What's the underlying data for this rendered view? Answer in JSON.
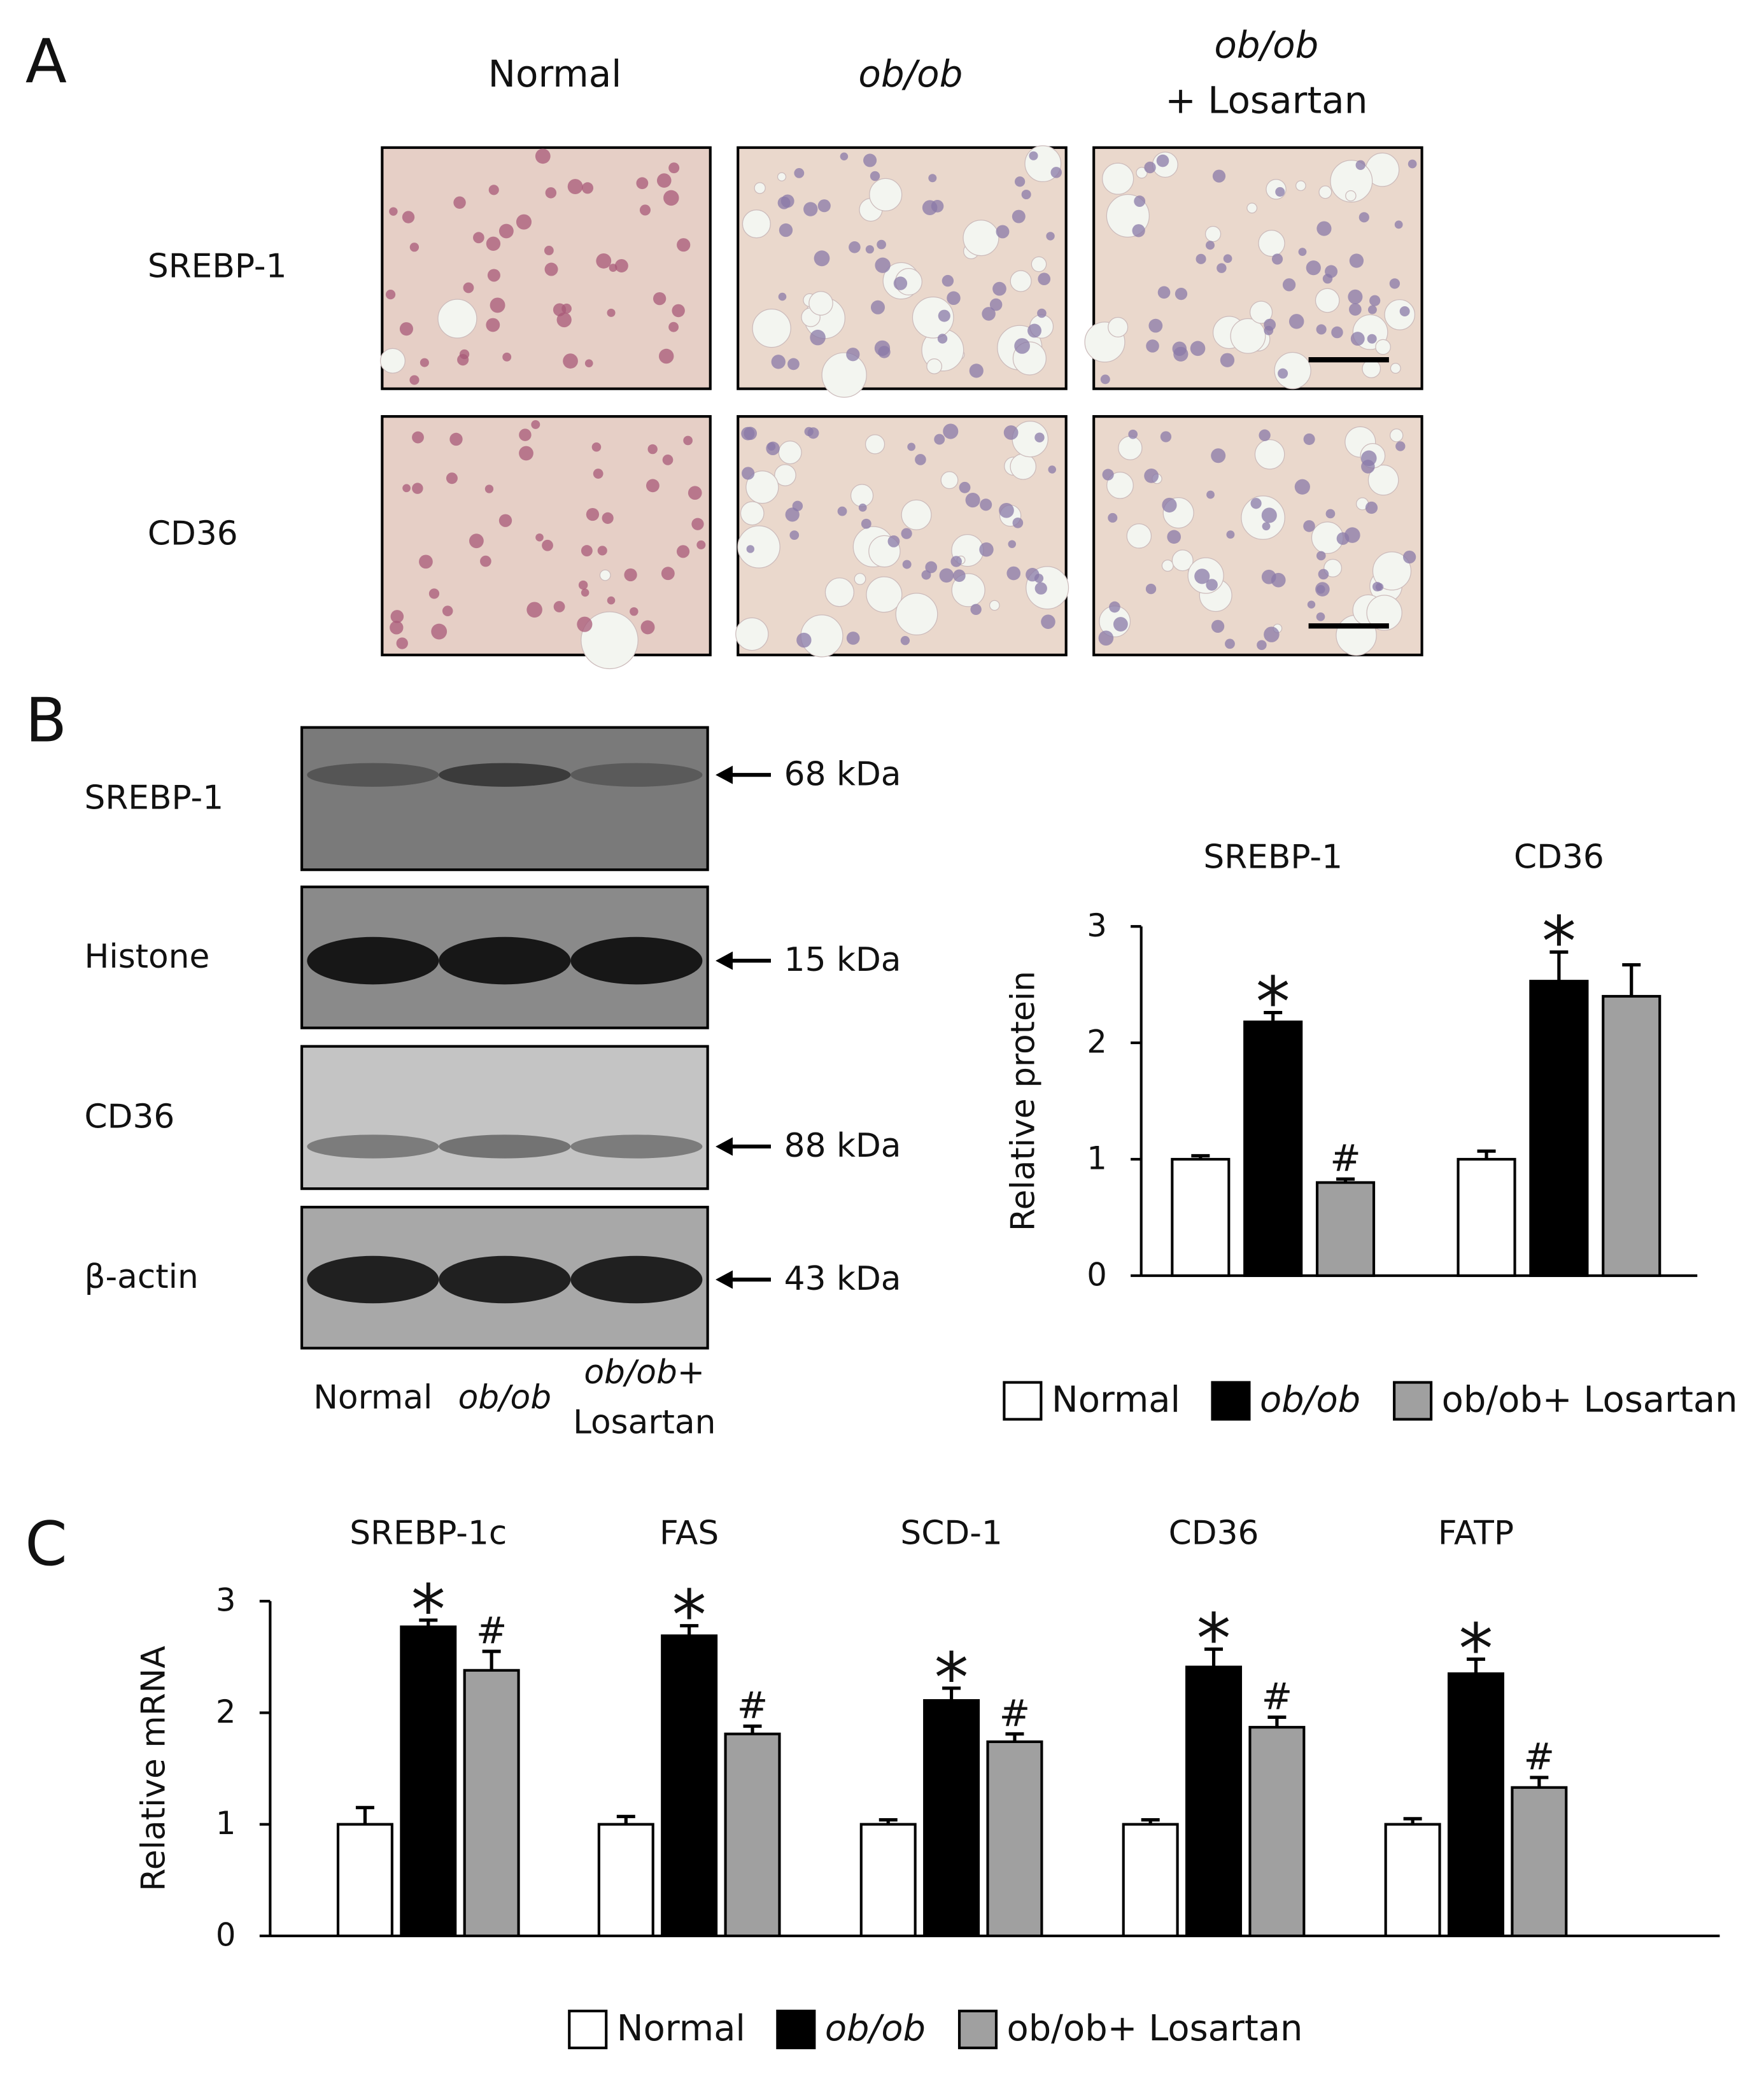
{
  "panel_a": {
    "label": "A",
    "columns": [
      "Normal",
      "ob/ob",
      [
        "ob/ob",
        "+ Losartan"
      ]
    ],
    "rows": [
      "SREBP-1",
      "CD36"
    ]
  },
  "panel_b": {
    "label": "B",
    "blots": [
      {
        "name": "SREBP-1",
        "size": "68 kDa"
      },
      {
        "name": "Histone",
        "size": "15 kDa"
      },
      {
        "name": "CD36",
        "size": "88 kDa"
      },
      {
        "name": "β-actin",
        "size": "43 kDa"
      }
    ],
    "lanes": [
      "Normal",
      "ob/ob",
      [
        "ob/ob+",
        "Losartan"
      ]
    ]
  },
  "panel_c": {
    "label": "C"
  },
  "chart_data": [
    {
      "type": "bar",
      "ylabel": "Relative protein",
      "categories": [
        "SREBP-1",
        "CD36"
      ],
      "series": [
        {
          "name": "Normal",
          "color": "#ffffff",
          "values": [
            1,
            1
          ],
          "errors": [
            0.03,
            0.07
          ],
          "markers": [
            null,
            null
          ]
        },
        {
          "name": "ob/ob",
          "color": "#000000",
          "values": [
            2.18,
            2.53
          ],
          "errors": [
            0.08,
            0.25
          ],
          "markers": [
            "*",
            "*"
          ]
        },
        {
          "name": "ob/ob+ Losartan",
          "color": "#a0a0a0",
          "values": [
            0.8,
            2.4
          ],
          "errors": [
            0.03,
            0.27
          ],
          "markers": [
            "#",
            null
          ]
        }
      ],
      "ylim": [
        0,
        3
      ],
      "yticks": [
        0,
        1,
        2,
        3
      ],
      "legend": "bottom"
    },
    {
      "type": "bar",
      "ylabel": "Relative mRNA",
      "categories": [
        "SREBP-1c",
        "FAS",
        "SCD-1",
        "CD36",
        "FATP"
      ],
      "series": [
        {
          "name": "Normal",
          "color": "#ffffff",
          "values": [
            1,
            1,
            1,
            1,
            1
          ],
          "errors": [
            0.15,
            0.07,
            0.04,
            0.04,
            0.05
          ],
          "markers": [
            null,
            null,
            null,
            null,
            null
          ]
        },
        {
          "name": "ob/ob",
          "color": "#000000",
          "values": [
            2.77,
            2.69,
            2.11,
            2.41,
            2.35
          ],
          "errors": [
            0.06,
            0.09,
            0.11,
            0.16,
            0.13
          ],
          "markers": [
            "*",
            "*",
            "*",
            "*",
            "*"
          ]
        },
        {
          "name": "ob/ob+ Losartan",
          "color": "#a0a0a0",
          "values": [
            2.38,
            1.81,
            1.74,
            1.87,
            1.33
          ],
          "errors": [
            0.17,
            0.07,
            0.07,
            0.09,
            0.09
          ],
          "markers": [
            "#",
            "#",
            "#",
            "#",
            "#"
          ]
        }
      ],
      "ylim": [
        0,
        3
      ],
      "yticks": [
        0,
        1,
        2,
        3
      ],
      "legend": "bottom"
    }
  ]
}
